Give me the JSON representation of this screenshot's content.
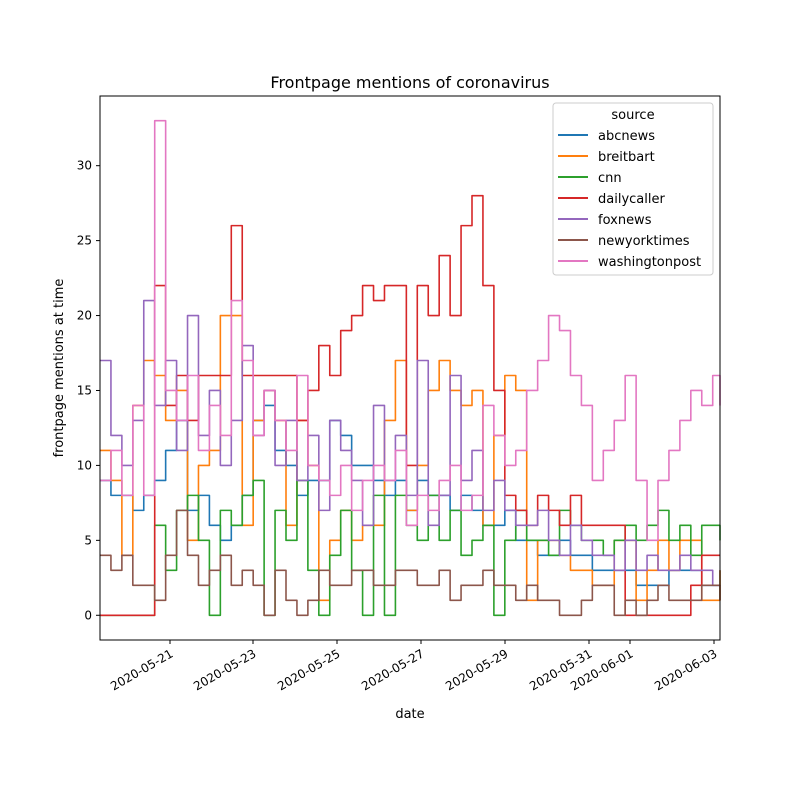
{
  "chart_data": {
    "type": "line",
    "title": "Frontpage mentions of coronavirus",
    "xlabel": "date",
    "ylabel": "frontpage mentions at time",
    "x_tick_labels": [
      "2020-05-21",
      "2020-05-23",
      "2020-05-25",
      "2020-05-27",
      "2020-05-29",
      "2020-05-31",
      "2020-06-01",
      "2020-06-03"
    ],
    "xlim": [
      "2020-05-20T00:00",
      "2020-06-03T04:00"
    ],
    "y_ticks": [
      0,
      5,
      10,
      15,
      20,
      25,
      30
    ],
    "ylim": [
      -1.65,
      34.65
    ],
    "grid": false,
    "legend": {
      "title": "source",
      "placement": "top-right"
    },
    "series": [
      {
        "name": "abcnews",
        "color": "#1f77b4",
        "x": [
          "2020-05-20T00:00",
          "2020-05-20T06:00",
          "2020-05-20T12:00",
          "2020-05-20T18:00",
          "2020-05-21T00:00",
          "2020-05-21T06:00",
          "2020-05-21T12:00",
          "2020-05-21T18:00",
          "2020-05-22T00:00",
          "2020-05-22T06:00",
          "2020-05-22T12:00",
          "2020-05-22T18:00",
          "2020-05-23T00:00",
          "2020-05-23T06:00",
          "2020-05-23T12:00",
          "2020-05-23T18:00",
          "2020-05-24T00:00",
          "2020-05-24T06:00",
          "2020-05-24T12:00",
          "2020-05-24T18:00",
          "2020-05-25T00:00",
          "2020-05-25T06:00",
          "2020-05-25T12:00",
          "2020-05-25T18:00",
          "2020-05-26T00:00",
          "2020-05-26T06:00",
          "2020-05-26T12:00",
          "2020-05-26T18:00",
          "2020-05-27T00:00",
          "2020-05-27T06:00",
          "2020-05-27T12:00",
          "2020-05-27T18:00",
          "2020-05-28T00:00",
          "2020-05-28T06:00",
          "2020-05-28T12:00",
          "2020-05-28T18:00",
          "2020-05-29T00:00",
          "2020-05-29T06:00",
          "2020-05-29T12:00",
          "2020-05-29T18:00",
          "2020-05-30T00:00",
          "2020-05-30T06:00",
          "2020-05-30T12:00",
          "2020-05-30T18:00",
          "2020-05-31T00:00",
          "2020-05-31T06:00",
          "2020-05-31T12:00",
          "2020-05-31T18:00",
          "2020-06-01T00:00",
          "2020-06-01T06:00",
          "2020-06-01T12:00",
          "2020-06-01T18:00",
          "2020-06-02T00:00",
          "2020-06-02T06:00",
          "2020-06-02T12:00",
          "2020-06-02T18:00",
          "2020-06-03T00:00",
          "2020-06-03T04:00"
        ],
        "y": [
          9,
          8,
          8,
          7,
          8,
          9,
          11,
          13,
          7,
          8,
          6,
          5,
          6,
          8,
          13,
          14,
          11,
          10,
          8,
          9,
          9,
          13,
          12,
          10,
          10,
          9,
          8,
          9,
          7,
          9,
          8,
          8,
          7,
          8,
          7,
          6,
          6,
          7,
          5,
          5,
          4,
          4,
          5,
          4,
          4,
          3,
          3,
          3,
          3,
          2,
          2,
          2,
          3,
          3,
          3,
          2,
          2,
          3
        ]
      },
      {
        "name": "breitbart",
        "color": "#ff7f0e",
        "x": [
          "2020-05-20T00:00",
          "2020-05-20T06:00",
          "2020-05-20T12:00",
          "2020-05-20T18:00",
          "2020-05-21T00:00",
          "2020-05-21T06:00",
          "2020-05-21T12:00",
          "2020-05-21T18:00",
          "2020-05-22T00:00",
          "2020-05-22T06:00",
          "2020-05-22T12:00",
          "2020-05-22T18:00",
          "2020-05-23T00:00",
          "2020-05-23T06:00",
          "2020-05-23T12:00",
          "2020-05-23T18:00",
          "2020-05-24T00:00",
          "2020-05-24T06:00",
          "2020-05-24T12:00",
          "2020-05-24T18:00",
          "2020-05-25T00:00",
          "2020-05-25T06:00",
          "2020-05-25T12:00",
          "2020-05-25T18:00",
          "2020-05-26T00:00",
          "2020-05-26T06:00",
          "2020-05-26T12:00",
          "2020-05-26T18:00",
          "2020-05-27T00:00",
          "2020-05-27T06:00",
          "2020-05-27T12:00",
          "2020-05-27T18:00",
          "2020-05-28T00:00",
          "2020-05-28T06:00",
          "2020-05-28T12:00",
          "2020-05-28T18:00",
          "2020-05-29T00:00",
          "2020-05-29T06:00",
          "2020-05-29T12:00",
          "2020-05-29T18:00",
          "2020-05-30T00:00",
          "2020-05-30T06:00",
          "2020-05-30T12:00",
          "2020-05-30T18:00",
          "2020-05-31T00:00",
          "2020-05-31T06:00",
          "2020-05-31T12:00",
          "2020-05-31T18:00",
          "2020-06-01T00:00",
          "2020-06-01T06:00",
          "2020-06-01T12:00",
          "2020-06-01T18:00",
          "2020-06-02T00:00",
          "2020-06-02T06:00",
          "2020-06-02T12:00",
          "2020-06-02T18:00",
          "2020-06-03T00:00",
          "2020-06-03T04:00"
        ],
        "y": [
          11,
          9,
          4,
          14,
          17,
          16,
          13,
          15,
          5,
          10,
          11,
          20,
          20,
          6,
          13,
          15,
          13,
          6,
          13,
          10,
          1,
          5,
          7,
          5,
          6,
          6,
          13,
          17,
          7,
          10,
          15,
          17,
          15,
          14,
          15,
          6,
          12,
          16,
          15,
          1,
          5,
          5,
          4,
          3,
          3,
          2,
          2,
          5,
          5,
          1,
          3,
          5,
          3,
          5,
          5,
          1,
          1,
          3
        ]
      },
      {
        "name": "cnn",
        "color": "#2ca02c",
        "x": [
          "2020-05-20T00:00",
          "2020-05-20T06:00",
          "2020-05-20T12:00",
          "2020-05-20T18:00",
          "2020-05-21T00:00",
          "2020-05-21T06:00",
          "2020-05-21T12:00",
          "2020-05-21T18:00",
          "2020-05-22T00:00",
          "2020-05-22T06:00",
          "2020-05-22T12:00",
          "2020-05-22T18:00",
          "2020-05-23T00:00",
          "2020-05-23T06:00",
          "2020-05-23T12:00",
          "2020-05-23T18:00",
          "2020-05-24T00:00",
          "2020-05-24T06:00",
          "2020-05-24T12:00",
          "2020-05-24T18:00",
          "2020-05-25T00:00",
          "2020-05-25T06:00",
          "2020-05-25T12:00",
          "2020-05-25T18:00",
          "2020-05-26T00:00",
          "2020-05-26T06:00",
          "2020-05-26T12:00",
          "2020-05-26T18:00",
          "2020-05-27T00:00",
          "2020-05-27T06:00",
          "2020-05-27T12:00",
          "2020-05-27T18:00",
          "2020-05-28T00:00",
          "2020-05-28T06:00",
          "2020-05-28T12:00",
          "2020-05-28T18:00",
          "2020-05-29T00:00",
          "2020-05-29T06:00",
          "2020-05-29T12:00",
          "2020-05-29T18:00",
          "2020-05-30T00:00",
          "2020-05-30T06:00",
          "2020-05-30T12:00",
          "2020-05-30T18:00",
          "2020-05-31T00:00",
          "2020-05-31T06:00",
          "2020-05-31T12:00",
          "2020-05-31T18:00",
          "2020-06-01T00:00",
          "2020-06-01T06:00",
          "2020-06-01T12:00",
          "2020-06-01T18:00",
          "2020-06-02T00:00",
          "2020-06-02T06:00",
          "2020-06-02T12:00",
          "2020-06-02T18:00",
          "2020-06-03T00:00",
          "2020-06-03T04:00"
        ],
        "y": [
          0,
          0,
          0,
          0,
          0,
          6,
          3,
          7,
          8,
          5,
          0,
          7,
          6,
          8,
          9,
          0,
          7,
          5,
          9,
          3,
          0,
          4,
          7,
          3,
          0,
          8,
          0,
          8,
          6,
          5,
          8,
          5,
          7,
          4,
          5,
          6,
          0,
          5,
          7,
          5,
          5,
          4,
          7,
          6,
          5,
          5,
          4,
          5,
          6,
          5,
          6,
          7,
          5,
          6,
          4,
          6,
          6,
          5
        ]
      },
      {
        "name": "dailycaller",
        "color": "#d62728",
        "x": [
          "2020-05-20T00:00",
          "2020-05-20T06:00",
          "2020-05-20T12:00",
          "2020-05-20T18:00",
          "2020-05-21T00:00",
          "2020-05-21T06:00",
          "2020-05-21T12:00",
          "2020-05-21T18:00",
          "2020-05-22T00:00",
          "2020-05-22T06:00",
          "2020-05-22T12:00",
          "2020-05-22T18:00",
          "2020-05-23T00:00",
          "2020-05-23T06:00",
          "2020-05-23T12:00",
          "2020-05-23T18:00",
          "2020-05-24T00:00",
          "2020-05-24T06:00",
          "2020-05-24T12:00",
          "2020-05-24T18:00",
          "2020-05-25T00:00",
          "2020-05-25T06:00",
          "2020-05-25T12:00",
          "2020-05-25T18:00",
          "2020-05-26T00:00",
          "2020-05-26T06:00",
          "2020-05-26T12:00",
          "2020-05-26T18:00",
          "2020-05-27T00:00",
          "2020-05-27T06:00",
          "2020-05-27T12:00",
          "2020-05-27T18:00",
          "2020-05-28T00:00",
          "2020-05-28T06:00",
          "2020-05-28T12:00",
          "2020-05-28T18:00",
          "2020-05-29T00:00",
          "2020-05-29T06:00",
          "2020-05-29T12:00",
          "2020-05-29T18:00",
          "2020-05-30T00:00",
          "2020-05-30T06:00",
          "2020-05-30T12:00",
          "2020-05-30T18:00",
          "2020-05-31T00:00",
          "2020-05-31T06:00",
          "2020-05-31T12:00",
          "2020-05-31T18:00",
          "2020-06-01T00:00",
          "2020-06-01T06:00",
          "2020-06-01T12:00",
          "2020-06-01T18:00",
          "2020-06-02T00:00",
          "2020-06-02T06:00",
          "2020-06-02T12:00",
          "2020-06-02T18:00",
          "2020-06-03T00:00",
          "2020-06-03T04:00"
        ],
        "y": [
          0,
          0,
          0,
          0,
          0,
          22,
          14,
          16,
          13,
          16,
          16,
          16,
          26,
          16,
          16,
          16,
          16,
          16,
          13,
          15,
          18,
          16,
          19,
          20,
          22,
          21,
          22,
          22,
          10,
          22,
          20,
          24,
          20,
          26,
          28,
          22,
          15,
          8,
          7,
          6,
          8,
          7,
          6,
          8,
          6,
          6,
          6,
          6,
          0,
          0,
          0,
          0,
          0,
          0,
          2,
          4,
          4,
          4
        ]
      },
      {
        "name": "foxnews",
        "color": "#9467bd",
        "x": [
          "2020-05-20T00:00",
          "2020-05-20T06:00",
          "2020-05-20T12:00",
          "2020-05-20T18:00",
          "2020-05-21T00:00",
          "2020-05-21T06:00",
          "2020-05-21T12:00",
          "2020-05-21T18:00",
          "2020-05-22T00:00",
          "2020-05-22T06:00",
          "2020-05-22T12:00",
          "2020-05-22T18:00",
          "2020-05-23T00:00",
          "2020-05-23T06:00",
          "2020-05-23T12:00",
          "2020-05-23T18:00",
          "2020-05-24T00:00",
          "2020-05-24T06:00",
          "2020-05-24T12:00",
          "2020-05-24T18:00",
          "2020-05-25T00:00",
          "2020-05-25T06:00",
          "2020-05-25T12:00",
          "2020-05-25T18:00",
          "2020-05-26T00:00",
          "2020-05-26T06:00",
          "2020-05-26T12:00",
          "2020-05-26T18:00",
          "2020-05-27T00:00",
          "2020-05-27T06:00",
          "2020-05-27T12:00",
          "2020-05-27T18:00",
          "2020-05-28T00:00",
          "2020-05-28T06:00",
          "2020-05-28T12:00",
          "2020-05-28T18:00",
          "2020-05-29T00:00",
          "2020-05-29T06:00",
          "2020-05-29T12:00",
          "2020-05-29T18:00",
          "2020-05-30T00:00",
          "2020-05-30T06:00",
          "2020-05-30T12:00",
          "2020-05-30T18:00",
          "2020-05-31T00:00",
          "2020-05-31T06:00",
          "2020-05-31T12:00",
          "2020-05-31T18:00",
          "2020-06-01T00:00",
          "2020-06-01T06:00",
          "2020-06-01T12:00",
          "2020-06-01T18:00",
          "2020-06-02T00:00",
          "2020-06-02T06:00",
          "2020-06-02T12:00",
          "2020-06-02T18:00",
          "2020-06-03T00:00",
          "2020-06-03T04:00"
        ],
        "y": [
          17,
          12,
          10,
          13,
          21,
          14,
          17,
          11,
          20,
          12,
          15,
          10,
          13,
          18,
          12,
          15,
          10,
          13,
          9,
          12,
          7,
          13,
          11,
          9,
          6,
          14,
          9,
          12,
          8,
          17,
          6,
          8,
          16,
          9,
          11,
          7,
          9,
          7,
          6,
          6,
          7,
          5,
          4,
          6,
          5,
          4,
          4,
          3,
          5,
          3,
          4,
          3,
          3,
          4,
          3,
          3,
          2,
          2
        ]
      },
      {
        "name": "newyorktimes",
        "color": "#8c564b",
        "x": [
          "2020-05-20T00:00",
          "2020-05-20T06:00",
          "2020-05-20T12:00",
          "2020-05-20T18:00",
          "2020-05-21T00:00",
          "2020-05-21T06:00",
          "2020-05-21T12:00",
          "2020-05-21T18:00",
          "2020-05-22T00:00",
          "2020-05-22T06:00",
          "2020-05-22T12:00",
          "2020-05-22T18:00",
          "2020-05-23T00:00",
          "2020-05-23T06:00",
          "2020-05-23T12:00",
          "2020-05-23T18:00",
          "2020-05-24T00:00",
          "2020-05-24T06:00",
          "2020-05-24T12:00",
          "2020-05-24T18:00",
          "2020-05-25T00:00",
          "2020-05-25T06:00",
          "2020-05-25T12:00",
          "2020-05-25T18:00",
          "2020-05-26T00:00",
          "2020-05-26T06:00",
          "2020-05-26T12:00",
          "2020-05-26T18:00",
          "2020-05-27T00:00",
          "2020-05-27T06:00",
          "2020-05-27T12:00",
          "2020-05-27T18:00",
          "2020-05-28T00:00",
          "2020-05-28T06:00",
          "2020-05-28T12:00",
          "2020-05-28T18:00",
          "2020-05-29T00:00",
          "2020-05-29T06:00",
          "2020-05-29T12:00",
          "2020-05-29T18:00",
          "2020-05-30T00:00",
          "2020-05-30T06:00",
          "2020-05-30T12:00",
          "2020-05-30T18:00",
          "2020-05-31T00:00",
          "2020-05-31T06:00",
          "2020-05-31T12:00",
          "2020-05-31T18:00",
          "2020-06-01T00:00",
          "2020-06-01T06:00",
          "2020-06-01T12:00",
          "2020-06-01T18:00",
          "2020-06-02T00:00",
          "2020-06-02T06:00",
          "2020-06-02T12:00",
          "2020-06-02T18:00",
          "2020-06-03T00:00",
          "2020-06-03T04:00"
        ],
        "y": [
          4,
          3,
          4,
          2,
          2,
          1,
          4,
          7,
          4,
          2,
          3,
          4,
          2,
          3,
          2,
          0,
          3,
          1,
          0,
          1,
          3,
          2,
          2,
          3,
          3,
          2,
          2,
          3,
          3,
          2,
          2,
          3,
          1,
          2,
          2,
          3,
          2,
          2,
          1,
          2,
          1,
          1,
          0,
          0,
          1,
          2,
          2,
          0,
          1,
          0,
          1,
          2,
          1,
          1,
          1,
          2,
          2,
          1
        ]
      },
      {
        "name": "washingtonpost",
        "color": "#e377c2",
        "x": [
          "2020-05-20T00:00",
          "2020-05-20T06:00",
          "2020-05-20T12:00",
          "2020-05-20T18:00",
          "2020-05-21T00:00",
          "2020-05-21T06:00",
          "2020-05-21T12:00",
          "2020-05-21T18:00",
          "2020-05-22T00:00",
          "2020-05-22T06:00",
          "2020-05-22T12:00",
          "2020-05-22T18:00",
          "2020-05-23T00:00",
          "2020-05-23T06:00",
          "2020-05-23T12:00",
          "2020-05-23T18:00",
          "2020-05-24T00:00",
          "2020-05-24T06:00",
          "2020-05-24T12:00",
          "2020-05-24T18:00",
          "2020-05-25T00:00",
          "2020-05-25T06:00",
          "2020-05-25T12:00",
          "2020-05-25T18:00",
          "2020-05-26T00:00",
          "2020-05-26T06:00",
          "2020-05-26T12:00",
          "2020-05-26T18:00",
          "2020-05-27T00:00",
          "2020-05-27T06:00",
          "2020-05-27T12:00",
          "2020-05-27T18:00",
          "2020-05-28T00:00",
          "2020-05-28T06:00",
          "2020-05-28T12:00",
          "2020-05-28T18:00",
          "2020-05-29T00:00",
          "2020-05-29T06:00",
          "2020-05-29T12:00",
          "2020-05-29T18:00",
          "2020-05-30T00:00",
          "2020-05-30T06:00",
          "2020-05-30T12:00",
          "2020-05-30T18:00",
          "2020-05-31T00:00",
          "2020-05-31T06:00",
          "2020-05-31T12:00",
          "2020-05-31T18:00",
          "2020-06-01T00:00",
          "2020-06-01T06:00",
          "2020-06-01T12:00",
          "2020-06-01T18:00",
          "2020-06-02T00:00",
          "2020-06-02T06:00",
          "2020-06-02T12:00",
          "2020-06-02T18:00",
          "2020-06-03T00:00",
          "2020-06-03T04:00"
        ],
        "y": [
          9,
          11,
          8,
          14,
          8,
          33,
          15,
          13,
          16,
          11,
          14,
          12,
          21,
          17,
          12,
          15,
          13,
          11,
          16,
          10,
          9,
          8,
          10,
          7,
          9,
          10,
          9,
          11,
          6,
          8,
          7,
          9,
          10,
          7,
          8,
          14,
          12,
          10,
          11,
          15,
          17,
          20,
          19,
          16,
          14,
          9,
          11,
          13,
          16,
          9,
          5,
          9,
          11,
          13,
          15,
          14,
          16,
          14
        ]
      }
    ]
  }
}
